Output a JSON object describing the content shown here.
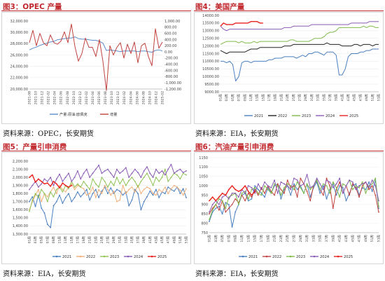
{
  "chart_data": [
    {
      "id": "p1",
      "type": "line",
      "title": "图3：OPEC 产量",
      "source": "资料来源：OPEC，长安期货",
      "ylim": [
        20000,
        32000
      ],
      "yticks": [
        "32,000.00",
        "30,000.00",
        "28,000.00",
        "26,000.00",
        "24,000.00",
        "22,000.00",
        "20,000.00"
      ],
      "y2lim": [
        -1200,
        1000
      ],
      "y2ticks": [
        "1,000.00",
        "800.00",
        "600.00",
        "400.00",
        "200.00",
        "0.00",
        "-200.00",
        "-400.00",
        "-600.00",
        "-800.00",
        "-1,000.00",
        "-1,200.00"
      ],
      "xticks": [
        "2021-08",
        "2021-10",
        "2021-12",
        "2022-02",
        "2022-04",
        "2022-06",
        "2022-08",
        "2022-10",
        "2022-12",
        "2023-02",
        "2023-04",
        "2023-06",
        "2023-08",
        "2023-10",
        "2023-12",
        "2024-02",
        "2024-04",
        "2024-06",
        "2024-08",
        "2024-10",
        "2024-12",
        "2025-02"
      ],
      "legend": [
        "产量:原油:欧佩克",
        "增量"
      ],
      "series": [
        {
          "name": "产量:原油:欧佩克",
          "color": "#5b8dc9",
          "axis": "left",
          "values": [
            26900,
            27200,
            27400,
            27700,
            27900,
            28100,
            28300,
            28400,
            28700,
            28800,
            28900,
            29000,
            29000,
            29200,
            28900,
            28800,
            28800,
            28700,
            28600,
            28600,
            28400,
            28100,
            26800,
            26900,
            26800,
            26700,
            26600,
            26700,
            26700,
            26700,
            26700,
            26600,
            26700,
            26700,
            26600,
            26500,
            26800,
            26900,
            26700
          ]
        },
        {
          "name": "增量",
          "color": "#c0423e",
          "axis": "right",
          "values": [
            300,
            700,
            200,
            600,
            300,
            200,
            550,
            300,
            250,
            350,
            650,
            300,
            900,
            180,
            -300,
            -50,
            450,
            150,
            150,
            -150,
            400,
            -300,
            -1250,
            200,
            -100,
            150,
            300,
            -200,
            250,
            -50,
            320,
            -350,
            200,
            280,
            -150,
            -450,
            750,
            120,
            320
          ]
        }
      ]
    },
    {
      "id": "p2",
      "type": "line",
      "title": "图4：美国产量",
      "source": "资料来源：EIA，长安期货",
      "ylim": [
        9000,
        14000
      ],
      "yticks": [
        "14000.00",
        "13500.00",
        "13000.00",
        "12500.00",
        "12000.00",
        "11500.00",
        "11000.00",
        "10500.00",
        "10000.00",
        "9500.00",
        "9000.00"
      ],
      "xticks": [
        "01周",
        "03周",
        "05周",
        "07周",
        "09周",
        "11周",
        "13周",
        "15周",
        "17周",
        "19周",
        "21周",
        "23周",
        "25周",
        "27周",
        "29周",
        "31周",
        "33周",
        "35周",
        "37周",
        "39周",
        "41周",
        "43周",
        "45周",
        "47周",
        "49周",
        "51周",
        "53周"
      ],
      "legend": [
        "2021",
        "2022",
        "2023",
        "2024",
        "2025"
      ],
      "series": [
        {
          "name": "2021",
          "color": "#4a7fc1",
          "values": [
            11000,
            11000,
            10900,
            11000,
            10800,
            9700,
            10000,
            10900,
            11000,
            11000,
            10900,
            11000,
            11000,
            11000,
            11000,
            11000,
            11100,
            11100,
            11200,
            11200,
            11200,
            11300,
            11300,
            11300,
            11300,
            11200,
            11300,
            11400,
            11300,
            11500,
            11500,
            11600,
            11600,
            11500,
            11400,
            11600,
            11600,
            11600,
            11400,
            10100,
            10100,
            10500,
            11300,
            11500,
            11500,
            11500,
            11600,
            11600,
            11700,
            11700,
            11800,
            11800,
            11800
          ]
        },
        {
          "name": "2022",
          "color": "#222222",
          "values": [
            11700,
            11600,
            11500,
            11600,
            11600,
            11600,
            11600,
            11600,
            11600,
            11700,
            11800,
            11800,
            11800,
            11900,
            11900,
            11900,
            11900,
            11900,
            11900,
            11900,
            11900,
            12000,
            12000,
            12000,
            12100,
            12100,
            12100,
            12100,
            12100,
            12100,
            12100,
            12100,
            12100,
            12100,
            12100,
            12200,
            12100,
            12100,
            12100,
            12100,
            12000,
            12000,
            12000,
            12000,
            12100,
            12100,
            12000,
            12100,
            12100,
            12100,
            12000,
            12100,
            12100
          ]
        },
        {
          "name": "2023",
          "color": "#7fba4a",
          "values": [
            12100,
            12200,
            12300,
            12300,
            12300,
            12300,
            12200,
            12300,
            12200,
            12200,
            12200,
            12300,
            12200,
            12300,
            12300,
            12300,
            12300,
            12300,
            12300,
            12300,
            12300,
            12300,
            12300,
            12400,
            12400,
            12300,
            12300,
            12300,
            12300,
            12300,
            12400,
            12500,
            12500,
            12500,
            12600,
            12800,
            12900,
            12900,
            13000,
            13200,
            13200,
            13200,
            13200,
            13200,
            13200,
            13200,
            13200,
            13300,
            13200,
            13300,
            13300,
            13200,
            13200
          ]
        },
        {
          "name": "2024",
          "color": "#8a5bb5",
          "values": [
            13300,
            13100,
            13000,
            13100,
            13100,
            13100,
            13100,
            13100,
            13100,
            13100,
            13100,
            13100,
            13100,
            13100,
            13100,
            13100,
            13100,
            13100,
            13100,
            13100,
            13100,
            13200,
            13200,
            13200,
            13300,
            13300,
            13300,
            13300,
            13300,
            13300,
            13400,
            13400,
            13400,
            13400,
            13400,
            13400,
            13400,
            13400,
            13400,
            13400,
            13400,
            13400,
            13400,
            13500,
            13500,
            13500,
            13500,
            13500,
            13500,
            13600,
            13600,
            13600,
            13600
          ]
        },
        {
          "name": "2025",
          "color": "#e8221f",
          "values": [
            13300,
            13500,
            13400,
            13400,
            13400,
            13500,
            13500,
            13500,
            13500,
            13500,
            13600,
            13600,
            13600,
            13500,
            13500
          ]
        }
      ]
    },
    {
      "id": "p3",
      "type": "line",
      "title": "图5：产量引申消费",
      "source": "资料来源：EIA，长安期货",
      "ylim": [
        1300,
        2200
      ],
      "yticks": [
        "2,200.00",
        "2,100.00",
        "2,000.00",
        "1,900.00",
        "1,800.00",
        "1,700.00",
        "1,600.00",
        "1,500.00",
        "1,400.00",
        "1,300.00"
      ],
      "xticks": [
        "01周",
        "03周",
        "05周",
        "07周",
        "09周",
        "11周",
        "13周",
        "15周",
        "17周",
        "19周",
        "21周",
        "23周",
        "25周",
        "27周",
        "29周",
        "31周",
        "33周",
        "35周",
        "37周",
        "39周",
        "41周",
        "43周",
        "45周",
        "47周",
        "49周",
        "51周",
        "53周"
      ],
      "legend": [
        "2021",
        "2022",
        "2023",
        "2024",
        "2025"
      ],
      "series": [
        {
          "name": "2021",
          "color": "#4a7fc1",
          "values": [
            1700,
            1760,
            1640,
            1780,
            1620,
            1560,
            1420,
            1380,
            1650,
            1700,
            1780,
            1680,
            1750,
            1800,
            1700,
            1750,
            1820,
            1760,
            1800,
            1850,
            1720,
            1800,
            1850,
            1750,
            1830,
            1880,
            1800,
            1870,
            1800,
            1850,
            1830,
            1780,
            1820,
            1650,
            1720,
            1850,
            1800,
            1600,
            1700,
            1760,
            1830,
            1780,
            1850,
            1750,
            1820,
            1800,
            1880,
            1850,
            1830,
            1880,
            1800,
            1860,
            1750
          ]
        },
        {
          "name": "2022",
          "color": "#f2b07a",
          "values": [
            1600,
            1700,
            1780,
            1850,
            1700,
            1800,
            1760,
            1820,
            1880,
            1800,
            1900,
            1850,
            1820,
            1880,
            1920,
            1850,
            1900,
            1880,
            1860,
            1780,
            1800,
            1880,
            1750,
            1850,
            1800,
            1900,
            1850,
            1780,
            1830,
            1700,
            1720,
            1900,
            1800,
            1850,
            1880,
            1820,
            1900,
            1800,
            1850,
            1880,
            1860,
            1800,
            1780,
            1850,
            1820,
            1880,
            1800,
            1860,
            1900,
            1880,
            1840,
            1780,
            1860
          ]
        },
        {
          "name": "2023",
          "color": "#8fc356",
          "values": [
            1580,
            1720,
            1800,
            1750,
            1850,
            1800,
            1700,
            1820,
            1760,
            1850,
            1880,
            1820,
            1900,
            1860,
            1950,
            1880,
            1920,
            1880,
            1950,
            1900,
            1850,
            1980,
            1920,
            1880,
            2000,
            1950,
            1880,
            1950,
            1900,
            2000,
            1920,
            1980,
            1900,
            1960,
            2000,
            1950,
            1880,
            1950,
            2000,
            2050,
            1980,
            1900,
            2000,
            1950,
            2000,
            2100,
            1950,
            2000,
            2050,
            2030,
            1980,
            2050,
            2030
          ]
        },
        {
          "name": "2024",
          "color": "#8a5bb5",
          "values": [
            1850,
            1900,
            1950,
            1880,
            1920,
            1980,
            1950,
            2000,
            1900,
            1980,
            2040,
            1950,
            2000,
            2050,
            1950,
            2000,
            2080,
            1980,
            2050,
            2100,
            2000,
            2050,
            2100,
            2150,
            2050,
            2080,
            2100,
            2050,
            2000,
            2100,
            2050,
            2080,
            2120,
            2000,
            2050,
            2100,
            2060,
            2000,
            2080,
            2130,
            2050,
            2000,
            2100,
            2050,
            2080,
            2030,
            2100,
            2160,
            2050,
            2080,
            2100,
            2060,
            2080
          ]
        },
        {
          "name": "2025",
          "color": "#e8221f",
          "values": [
            2000,
            2030,
            1940,
            1980,
            1950,
            1920,
            1930,
            1890,
            1950,
            1920,
            1870,
            1930,
            1900,
            1880,
            1900
          ]
        }
      ]
    },
    {
      "id": "p4",
      "type": "line",
      "title": "图6：汽油产量引申消费",
      "source": "资料来源：EIA，长安期货",
      "ylim": [
        750,
        1150
      ],
      "yticks": [
        "1150",
        "1100",
        "1050",
        "1000",
        "950",
        "900",
        "850",
        "800",
        "750"
      ],
      "xticks": [
        "01周",
        "03周",
        "05周",
        "07周",
        "09周",
        "11周",
        "13周",
        "15周",
        "17周",
        "19周",
        "21周",
        "23周",
        "25周",
        "27周",
        "29周",
        "31周",
        "33周",
        "35周",
        "37周",
        "39周",
        "41周",
        "43周",
        "45周",
        "47周",
        "49周",
        "51周",
        "53周"
      ],
      "legend": [
        "2021",
        "2022",
        "2023",
        "2024",
        "2025"
      ],
      "series": [
        {
          "name": "2021",
          "color": "#4a7fc1",
          "values": [
            810,
            860,
            880,
            890,
            850,
            910,
            900,
            780,
            860,
            900,
            950,
            960,
            920,
            930,
            1000,
            980,
            960,
            940,
            990,
            960,
            1000,
            1010,
            930,
            980,
            1000,
            950,
            1010,
            980,
            1000,
            960,
            1010,
            940,
            990,
            1020,
            960,
            1000,
            930,
            980,
            1010,
            950,
            1000,
            990,
            920,
            960,
            1000,
            1010,
            950,
            990,
            980,
            1020,
            970,
            1030,
            880
          ]
        },
        {
          "name": "2022",
          "color": "#c0423e",
          "values": [
            850,
            880,
            900,
            870,
            920,
            860,
            880,
            900,
            930,
            910,
            950,
            920,
            960,
            940,
            980,
            950,
            990,
            960,
            1000,
            970,
            950,
            1010,
            980,
            960,
            1030,
            990,
            1000,
            940,
            1040,
            1010,
            970,
            920,
            1000,
            1030,
            980,
            950,
            1040,
            1000,
            880,
            980,
            1020,
            960,
            1000,
            950,
            1010,
            990,
            940,
            1000,
            1020,
            980,
            1000,
            950,
            860
          ]
        },
        {
          "name": "2023",
          "color": "#7fba4a",
          "values": [
            820,
            870,
            900,
            930,
            920,
            880,
            940,
            950,
            960,
            900,
            960,
            970,
            930,
            980,
            990,
            960,
            950,
            1000,
            980,
            960,
            1010,
            1000,
            950,
            990,
            1010,
            1000,
            980,
            1020,
            990,
            960,
            1010,
            980,
            1000,
            1030,
            980,
            1010,
            1000,
            960,
            1020,
            990,
            940,
            1010,
            1000,
            1030,
            980,
            1000,
            990,
            1020,
            960,
            1000,
            1010,
            1040,
            890
          ]
        },
        {
          "name": "2024",
          "color": "#8a5bb5",
          "values": [
            860,
            900,
            920,
            900,
            940,
            950,
            930,
            960,
            960,
            940,
            980,
            960,
            1000,
            990,
            960,
            1010,
            980,
            1020,
            1000,
            990,
            1030,
            960,
            1020,
            1010,
            1000,
            980,
            1040,
            1030,
            1000,
            1010,
            1060,
            990,
            1000,
            1040,
            1010,
            980,
            1030,
            1020,
            990,
            1010,
            1040,
            960,
            1000,
            1030,
            1020,
            980,
            1000,
            1010,
            1020,
            990,
            1030,
            1000,
            920
          ]
        },
        {
          "name": "2025",
          "color": "#e8221f",
          "values": [
            920,
            940,
            920,
            940,
            960,
            950,
            980,
            1000,
            980,
            970,
            980,
            1000,
            970,
            950,
            970
          ]
        }
      ]
    }
  ]
}
